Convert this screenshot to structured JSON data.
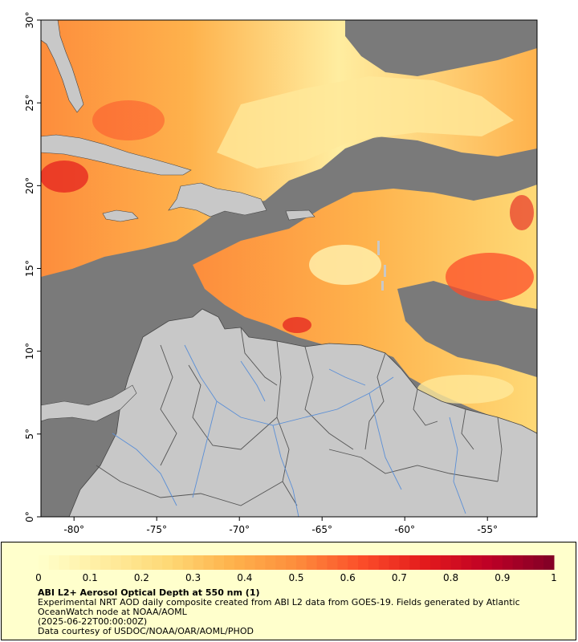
{
  "map": {
    "x_axis": {
      "ticks": [
        {
          "lon": -80,
          "label": "-80°"
        },
        {
          "lon": -75,
          "label": "-75°"
        },
        {
          "lon": -70,
          "label": "-70°"
        },
        {
          "lon": -65,
          "label": "-65°"
        },
        {
          "lon": -60,
          "label": "-60°"
        },
        {
          "lon": -55,
          "label": "-55°"
        }
      ],
      "range": [
        -82,
        -52
      ]
    },
    "y_axis": {
      "ticks": [
        {
          "lat": 0,
          "label": "0°"
        },
        {
          "lat": 5,
          "label": "5°"
        },
        {
          "lat": 10,
          "label": "10°"
        },
        {
          "lat": 15,
          "label": "15°"
        },
        {
          "lat": 20,
          "label": "20°"
        },
        {
          "lat": 25,
          "label": "25°"
        },
        {
          "lat": 30,
          "label": "30°"
        }
      ],
      "range": [
        0,
        30
      ]
    },
    "colors": {
      "no_data": "#7a7a7a",
      "land": "#c8c8c8",
      "rivers": "#5b8fd6",
      "borders": "#555555"
    }
  },
  "colorbar": {
    "min": 0,
    "max": 1,
    "tick_labels": [
      "0",
      "0.1",
      "0.2",
      "0.3",
      "0.4",
      "0.5",
      "0.6",
      "0.7",
      "0.8",
      "0.9",
      "1"
    ],
    "color_stops": [
      "#ffffcc",
      "#ffeda0",
      "#fed976",
      "#feb24c",
      "#fd8d3c",
      "#fc4e2a",
      "#e31a1c",
      "#bd0026",
      "#800026"
    ],
    "background": "#ffffcc"
  },
  "legend": {
    "title": "ABI L2+ Aerosol Optical Depth at 550 nm (1)",
    "line1": "Experimental NRT AOD daily composite created from ABI L2 data from GOES-19. Fields generated by Atlantic OceanWatch node at NOAA/AOML",
    "line2": "(2025-06-22T00:00:00Z)",
    "line3": "Data courtesy of USDOC/NOAA/OAR/AOML/PHOD"
  },
  "chart_data": {
    "type": "heatmap",
    "title": "ABI L2+ Aerosol Optical Depth at 550 nm (1)",
    "xlabel": "",
    "ylabel": "",
    "xlim": [
      -82,
      -52
    ],
    "ylim": [
      0,
      30
    ],
    "x_ticks": [
      -80,
      -75,
      -70,
      -65,
      -60,
      -55
    ],
    "y_ticks": [
      0,
      5,
      10,
      15,
      20,
      25,
      30
    ],
    "colorbar_range": [
      0,
      1
    ],
    "colorbar_ticks": [
      0,
      0.1,
      0.2,
      0.3,
      0.4,
      0.5,
      0.6,
      0.7,
      0.8,
      0.9,
      1
    ],
    "grid": false,
    "legend_position": "bottom"
  }
}
